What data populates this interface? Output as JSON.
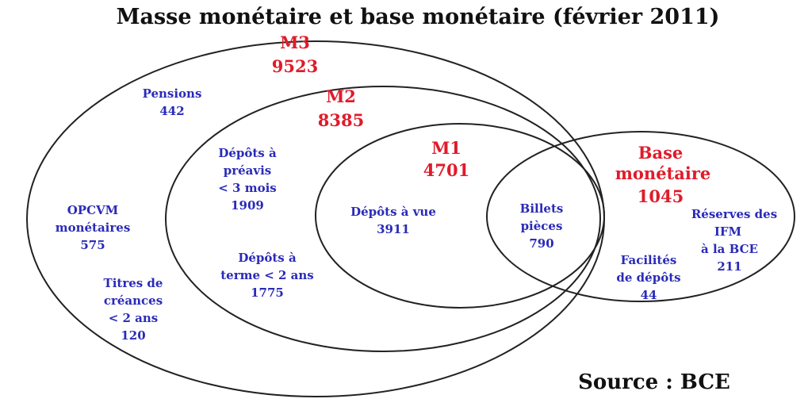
{
  "title": "Masse monétaire et base monétaire (février 2011)",
  "source": "Source : BCE",
  "colors": {
    "aggregate": "#e01b2a",
    "component": "#2a2ab8",
    "text": "#111111"
  },
  "aggregates": {
    "m3": {
      "name": "M3",
      "value": "9523"
    },
    "m2": {
      "name": "M2",
      "value": "8385"
    },
    "m1": {
      "name": "M1",
      "value": "4701"
    },
    "base": {
      "name_line1": "Base",
      "name_line2": "monétaire",
      "value": "1045"
    }
  },
  "components": {
    "pensions": {
      "lines": [
        "Pensions"
      ],
      "value": "442"
    },
    "opcvm": {
      "lines": [
        "OPCVM",
        "monétaires"
      ],
      "value": "575"
    },
    "titres": {
      "lines": [
        "Titres de",
        "créances",
        "< 2 ans"
      ],
      "value": "120"
    },
    "depots_preavis": {
      "lines": [
        "Dépôts à",
        "préavis",
        "< 3 mois"
      ],
      "value": "1909"
    },
    "depots_terme": {
      "lines": [
        "Dépôts à",
        "terme < 2 ans"
      ],
      "value": "1775"
    },
    "depots_vue": {
      "lines": [
        "Dépôts à vue"
      ],
      "value": "3911"
    },
    "billets": {
      "lines": [
        "Billets",
        "pièces"
      ],
      "value": "790"
    },
    "reserves": {
      "lines": [
        "Réserves des",
        "IFM",
        "à la BCE"
      ],
      "value": "211"
    },
    "facilites": {
      "lines": [
        "Facilités",
        "de dépôts"
      ],
      "value": "44"
    }
  }
}
